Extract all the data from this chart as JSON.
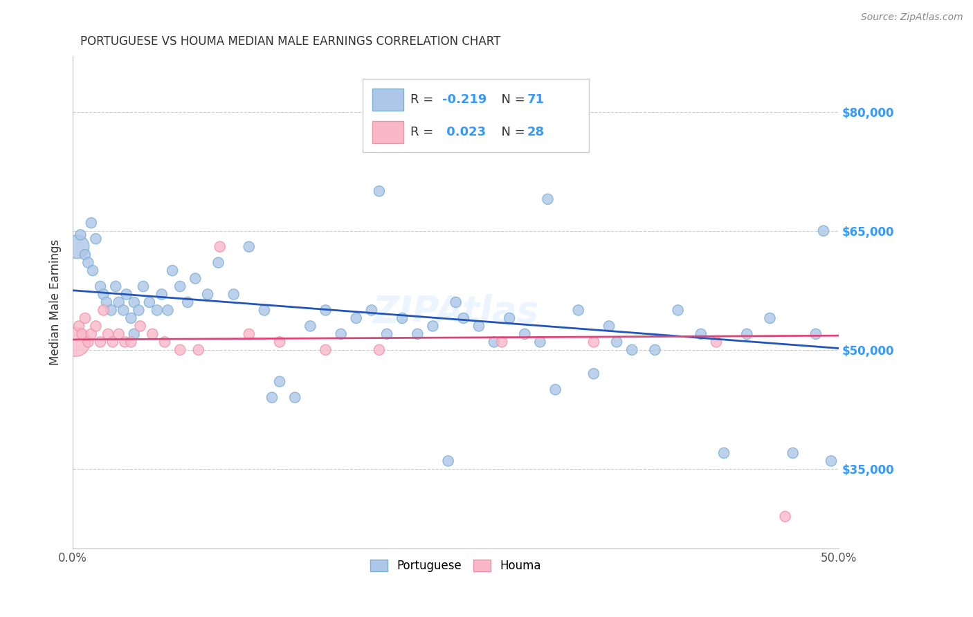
{
  "title": "PORTUGUESE VS HOUMA MEDIAN MALE EARNINGS CORRELATION CHART",
  "source": "Source: ZipAtlas.com",
  "ylabel": "Median Male Earnings",
  "xlim": [
    0.0,
    0.5
  ],
  "ylim": [
    25000,
    87000
  ],
  "xticks": [
    0.0,
    0.1,
    0.2,
    0.3,
    0.4,
    0.5
  ],
  "xticklabels": [
    "0.0%",
    "",
    "",
    "",
    "",
    "50.0%"
  ],
  "ytick_labels_right": [
    "$80,000",
    "$65,000",
    "$50,000",
    "$35,000"
  ],
  "ytick_values_right": [
    80000,
    65000,
    50000,
    35000
  ],
  "portuguese_color": "#aec6e8",
  "portuguese_edge": "#7aafd4",
  "houma_color": "#f9b8c8",
  "houma_edge": "#f090aa",
  "trend_blue": "#2255bb",
  "trend_pink": "#dd4477",
  "watermark": "ZIPAtlas",
  "portuguese_x": [
    0.003,
    0.005,
    0.008,
    0.01,
    0.013,
    0.015,
    0.018,
    0.02,
    0.022,
    0.025,
    0.028,
    0.03,
    0.033,
    0.035,
    0.038,
    0.04,
    0.043,
    0.046,
    0.05,
    0.055,
    0.058,
    0.062,
    0.065,
    0.07,
    0.075,
    0.08,
    0.088,
    0.095,
    0.105,
    0.115,
    0.125,
    0.135,
    0.145,
    0.155,
    0.165,
    0.175,
    0.185,
    0.195,
    0.205,
    0.215,
    0.225,
    0.235,
    0.245,
    0.255,
    0.265,
    0.275,
    0.285,
    0.295,
    0.305,
    0.315,
    0.33,
    0.34,
    0.355,
    0.365,
    0.38,
    0.395,
    0.41,
    0.425,
    0.44,
    0.455,
    0.47,
    0.485,
    0.495,
    0.012,
    0.2,
    0.31,
    0.35,
    0.04,
    0.13,
    0.25,
    0.49
  ],
  "portuguese_y": [
    63000,
    64500,
    62000,
    61000,
    60000,
    64000,
    58000,
    57000,
    56000,
    55000,
    58000,
    56000,
    55000,
    57000,
    54000,
    56000,
    55000,
    58000,
    56000,
    55000,
    57000,
    55000,
    60000,
    58000,
    56000,
    59000,
    57000,
    61000,
    57000,
    63000,
    55000,
    46000,
    44000,
    53000,
    55000,
    52000,
    54000,
    55000,
    52000,
    54000,
    52000,
    53000,
    36000,
    54000,
    53000,
    51000,
    54000,
    52000,
    51000,
    45000,
    55000,
    47000,
    51000,
    50000,
    50000,
    55000,
    52000,
    37000,
    52000,
    54000,
    37000,
    52000,
    36000,
    66000,
    70000,
    69000,
    53000,
    52000,
    44000,
    56000,
    65000
  ],
  "houma_x": [
    0.002,
    0.004,
    0.006,
    0.008,
    0.01,
    0.012,
    0.015,
    0.018,
    0.02,
    0.023,
    0.026,
    0.03,
    0.034,
    0.038,
    0.044,
    0.052,
    0.06,
    0.07,
    0.082,
    0.096,
    0.115,
    0.135,
    0.165,
    0.2,
    0.28,
    0.34,
    0.42,
    0.465
  ],
  "houma_y": [
    51000,
    53000,
    52000,
    54000,
    51000,
    52000,
    53000,
    51000,
    55000,
    52000,
    51000,
    52000,
    51000,
    51000,
    53000,
    52000,
    51000,
    50000,
    50000,
    63000,
    52000,
    51000,
    50000,
    50000,
    51000,
    51000,
    51000,
    29000
  ],
  "houma_sizes": [
    80,
    80,
    80,
    80,
    80,
    80,
    80,
    80,
    80,
    80,
    80,
    80,
    80,
    80,
    80,
    80,
    80,
    80,
    80,
    80,
    80,
    80,
    80,
    80,
    80,
    80,
    80,
    80
  ],
  "houma_big_idx": 0,
  "blue_trend_x0": 0.0,
  "blue_trend_y0": 57500,
  "blue_trend_x1": 0.5,
  "blue_trend_y1": 50200,
  "pink_trend_x0": 0.0,
  "pink_trend_y0": 51300,
  "pink_trend_x1": 0.5,
  "pink_trend_y1": 51800
}
